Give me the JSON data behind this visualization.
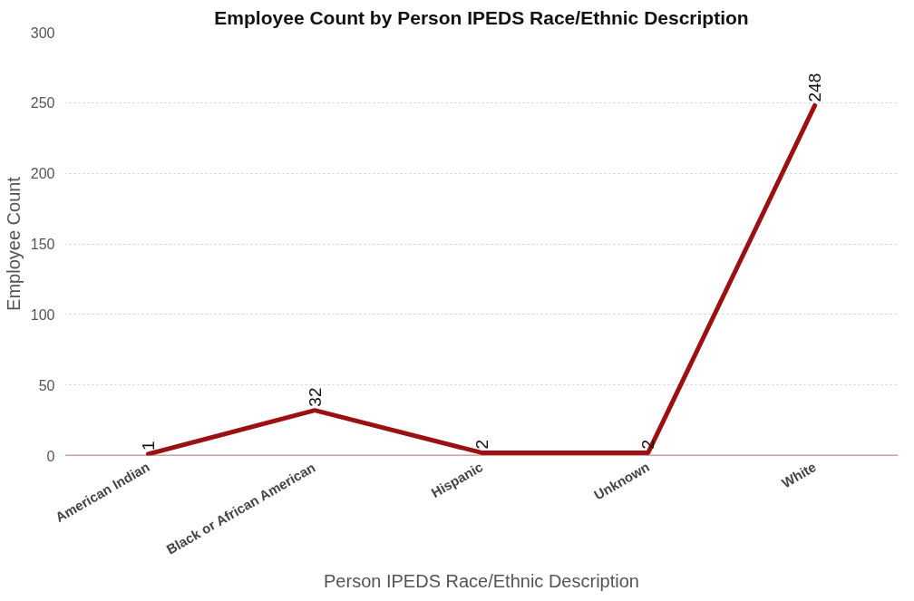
{
  "chart_data": {
    "type": "line",
    "title": "Employee Count by Person IPEDS Race/Ethnic Description",
    "xlabel": "Person IPEDS Race/Ethnic Description",
    "ylabel": "Employee Count",
    "categories": [
      "American Indian",
      "Black or African American",
      "Hispanic",
      "Unknown",
      "White"
    ],
    "series": [
      {
        "color": "#9b1010",
        "values": [
          1,
          32,
          2,
          2,
          248
        ]
      }
    ],
    "ylim": [
      0,
      300
    ],
    "yticks": [
      0,
      50,
      100,
      150,
      200,
      250,
      300
    ],
    "grid": "y",
    "data_labels": true,
    "line_style": "solid"
  }
}
